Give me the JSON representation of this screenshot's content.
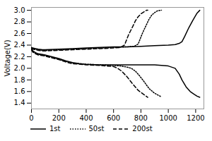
{
  "chart_data": {
    "type": "line",
    "ylabel": "Voltage(V)",
    "xlim": [
      0,
      1260
    ],
    "ylim": [
      1.3,
      3.05
    ],
    "xticks": [
      0,
      200,
      400,
      600,
      800,
      1000,
      1200
    ],
    "yticks": [
      1.4,
      1.6,
      1.8,
      {
        "value": 2.0,
        "label": "2.0"
      },
      2.2,
      2.4,
      2.6,
      2.8,
      {
        "value": 3.0,
        "label": "3.0"
      }
    ],
    "legend": "lower left",
    "series": [
      {
        "name": "1st",
        "color": "black",
        "line_style": "solid",
        "x": [
          0,
          10,
          30,
          50,
          80,
          100,
          200,
          300,
          400,
          500,
          600,
          700,
          800,
          900,
          1000,
          1050,
          1080,
          1100,
          1120,
          1150,
          1180,
          1210,
          1230
        ],
        "values": [
          2.36,
          2.35,
          2.34,
          2.33,
          2.32,
          2.32,
          2.33,
          2.34,
          2.35,
          2.36,
          2.37,
          2.37,
          2.38,
          2.39,
          2.4,
          2.41,
          2.43,
          2.46,
          2.55,
          2.7,
          2.83,
          2.95,
          3.0
        ]
      },
      {
        "color": "black",
        "line_style": "solid",
        "x": [
          0,
          10,
          30,
          50,
          80,
          100,
          150,
          200,
          250,
          300,
          350,
          400,
          500,
          600,
          700,
          800,
          900,
          1000,
          1050,
          1080,
          1100,
          1130,
          1160,
          1190,
          1210,
          1230
        ],
        "values": [
          2.34,
          2.3,
          2.27,
          2.25,
          2.24,
          2.23,
          2.2,
          2.17,
          2.13,
          2.1,
          2.08,
          2.07,
          2.06,
          2.06,
          2.06,
          2.06,
          2.06,
          2.04,
          2.0,
          1.9,
          1.8,
          1.68,
          1.6,
          1.55,
          1.52,
          1.5
        ]
      },
      {
        "name": "50st",
        "color": "black",
        "line_style": "dotted",
        "x": [
          0,
          10,
          30,
          50,
          80,
          100,
          200,
          300,
          400,
          500,
          600,
          700,
          750,
          780,
          810,
          840,
          860,
          880,
          900,
          920,
          940,
          950
        ],
        "values": [
          2.35,
          2.34,
          2.33,
          2.32,
          2.31,
          2.31,
          2.32,
          2.33,
          2.34,
          2.35,
          2.36,
          2.37,
          2.38,
          2.42,
          2.6,
          2.75,
          2.85,
          2.92,
          2.96,
          2.99,
          3.0,
          3.0
        ]
      },
      {
        "color": "black",
        "line_style": "dotted",
        "x": [
          0,
          10,
          30,
          50,
          80,
          100,
          150,
          200,
          250,
          300,
          400,
          500,
          600,
          650,
          700,
          730,
          760,
          790,
          820,
          860,
          900,
          940,
          950
        ],
        "values": [
          2.33,
          2.29,
          2.26,
          2.24,
          2.23,
          2.22,
          2.19,
          2.16,
          2.12,
          2.09,
          2.07,
          2.06,
          2.05,
          2.04,
          2.02,
          2.0,
          1.95,
          1.87,
          1.78,
          1.65,
          1.57,
          1.52,
          1.5
        ]
      },
      {
        "name": "200st",
        "color": "black",
        "line_style": "dashed",
        "x": [
          0,
          10,
          30,
          50,
          80,
          100,
          200,
          300,
          400,
          500,
          600,
          650,
          680,
          710,
          740,
          760,
          780,
          800,
          820,
          840,
          850
        ],
        "values": [
          2.34,
          2.33,
          2.32,
          2.31,
          2.3,
          2.3,
          2.31,
          2.32,
          2.33,
          2.34,
          2.35,
          2.36,
          2.4,
          2.58,
          2.72,
          2.82,
          2.89,
          2.94,
          2.97,
          3.0,
          3.0
        ]
      },
      {
        "color": "black",
        "line_style": "dashed",
        "x": [
          0,
          10,
          30,
          50,
          80,
          100,
          150,
          200,
          250,
          300,
          400,
          500,
          550,
          600,
          630,
          660,
          700,
          740,
          780,
          820,
          850
        ],
        "values": [
          2.32,
          2.28,
          2.25,
          2.23,
          2.22,
          2.21,
          2.18,
          2.15,
          2.11,
          2.08,
          2.06,
          2.05,
          2.04,
          2.03,
          2.0,
          1.95,
          1.85,
          1.73,
          1.62,
          1.55,
          1.5
        ]
      }
    ]
  }
}
